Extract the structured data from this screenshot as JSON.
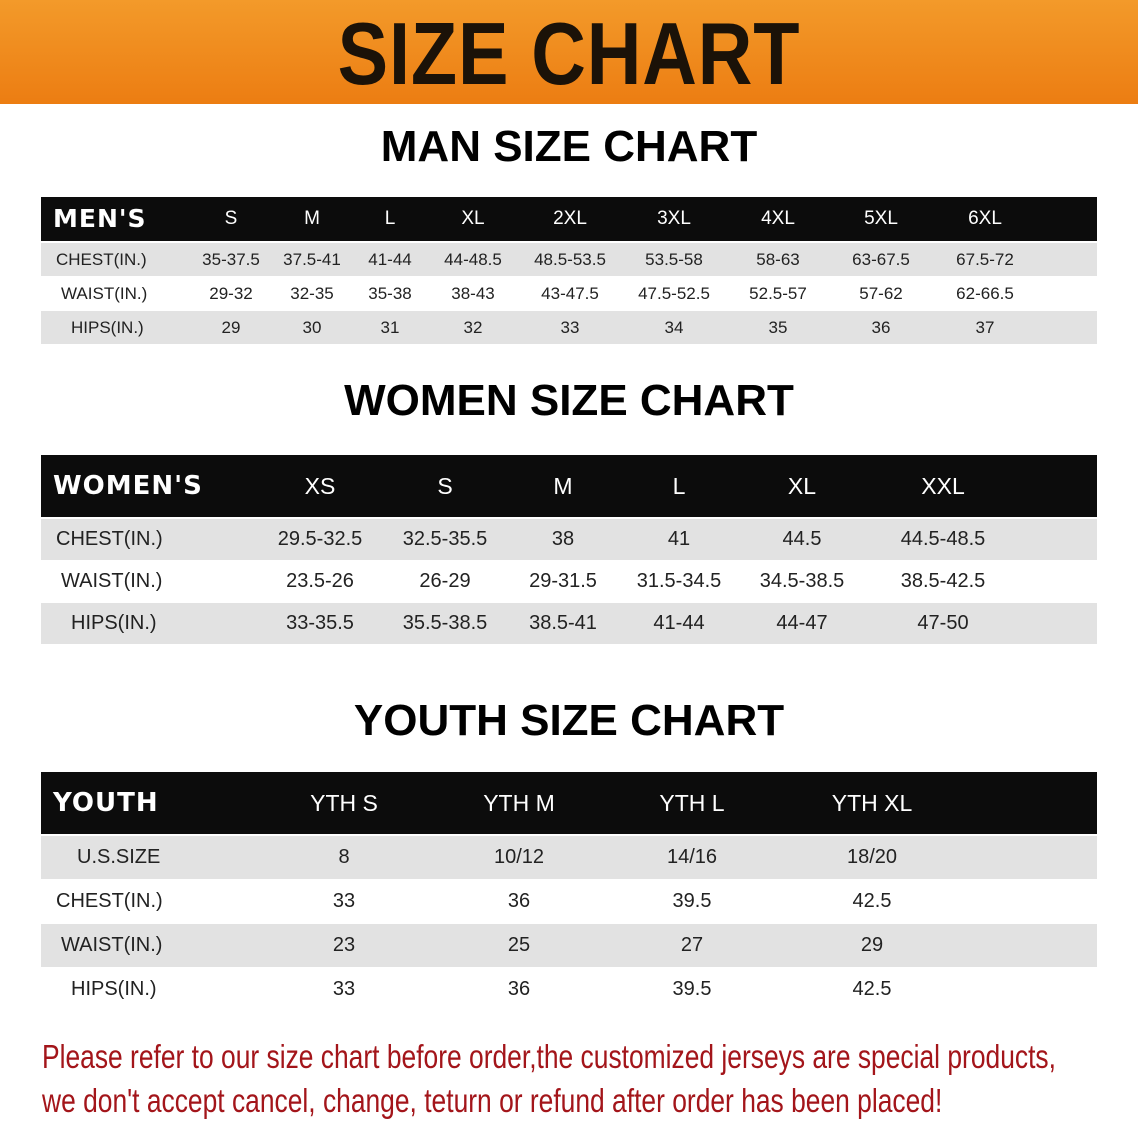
{
  "title": "SIZE CHART",
  "colors": {
    "banner": "#ef8a1e",
    "header_bg": "#0c0c0c",
    "row_shade": "#e2e2e2",
    "note": "#a3151a"
  },
  "men": {
    "heading": "MAN SIZE CHART",
    "label": "MEN'S",
    "sizes": [
      "S",
      "M",
      "L",
      "XL",
      "2XL",
      "3XL",
      "4XL",
      "5XL",
      "6XL"
    ],
    "rows": [
      {
        "label": "CHEST(IN.)",
        "values": [
          "35-37.5",
          "37.5-41",
          "41-44",
          "44-48.5",
          "48.5-53.5",
          "53.5-58",
          "58-63",
          "63-67.5",
          "67.5-72"
        ]
      },
      {
        "label": "WAIST(IN.)",
        "values": [
          "29-32",
          "32-35",
          "35-38",
          "38-43",
          "43-47.5",
          "47.5-52.5",
          "52.5-57",
          "57-62",
          "62-66.5"
        ]
      },
      {
        "label": "HIPS(IN.)",
        "values": [
          "29",
          "30",
          "31",
          "32",
          "33",
          "34",
          "35",
          "36",
          "37"
        ]
      }
    ]
  },
  "women": {
    "heading": "WOMEN SIZE CHART",
    "label": "WOMEN'S",
    "sizes": [
      "XS",
      "S",
      "M",
      "L",
      "XL",
      "XXL"
    ],
    "rows": [
      {
        "label": "CHEST(IN.)",
        "values": [
          "29.5-32.5",
          "32.5-35.5",
          "38",
          "41",
          "44.5",
          "44.5-48.5"
        ]
      },
      {
        "label": "WAIST(IN.)",
        "values": [
          "23.5-26",
          "26-29",
          "29-31.5",
          "31.5-34.5",
          "34.5-38.5",
          "38.5-42.5"
        ]
      },
      {
        "label": "HIPS(IN.)",
        "values": [
          "33-35.5",
          "35.5-38.5",
          "38.5-41",
          "41-44",
          "44-47",
          "47-50"
        ]
      }
    ]
  },
  "youth": {
    "heading": "YOUTH SIZE CHART",
    "label": "YOUTH",
    "sizes": [
      "YTH S",
      "YTH M",
      "YTH L",
      "YTH XL"
    ],
    "rows": [
      {
        "label": "U.S.SIZE",
        "values": [
          "8",
          "10/12",
          "14/16",
          "18/20"
        ]
      },
      {
        "label": "CHEST(IN.)",
        "values": [
          "33",
          "36",
          "39.5",
          "42.5"
        ]
      },
      {
        "label": "WAIST(IN.)",
        "values": [
          "23",
          "25",
          "27",
          "29"
        ]
      },
      {
        "label": "HIPS(IN.)",
        "values": [
          "33",
          "36",
          "39.5",
          "42.5"
        ]
      }
    ]
  },
  "note": {
    "line1": "Please refer to our size chart before order,the customized jerseys are special products,",
    "line2": "we don't accept cancel, change, teturn or refund after order has been placed!"
  }
}
